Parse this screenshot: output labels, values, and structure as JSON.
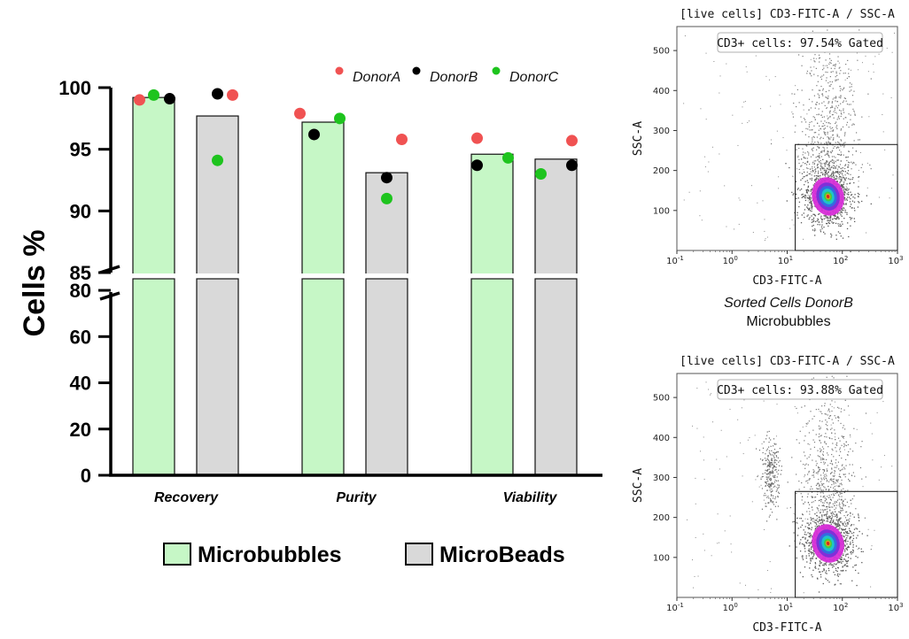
{
  "chart_data": [
    {
      "type": "bar",
      "ylabel": "Cells %",
      "categories": [
        "Recovery",
        "Purity",
        "Viability"
      ],
      "series": [
        {
          "name": "Microbubbles",
          "color": "#c6f7c6",
          "values": [
            99.2,
            97.2,
            94.6
          ]
        },
        {
          "name": "MicroBeads",
          "color": "#d9d9d9",
          "values": [
            97.7,
            93.1,
            94.2
          ]
        }
      ],
      "points": {
        "donors": [
          {
            "name": "DonorA",
            "color": "#f05252"
          },
          {
            "name": "DonorB",
            "color": "#000000"
          },
          {
            "name": "DonorC",
            "color": "#1ec41e"
          }
        ],
        "Microbubbles": {
          "DonorA": [
            99.0,
            97.9,
            95.9
          ],
          "DonorB": [
            99.1,
            96.2,
            93.7
          ],
          "DonorC": [
            99.4,
            97.5,
            94.3
          ]
        },
        "MicroBeads": {
          "DonorA": [
            99.4,
            95.8,
            95.7
          ],
          "DonorB": [
            99.5,
            92.7,
            93.7
          ],
          "DonorC": [
            94.1,
            91.0,
            93.0
          ]
        }
      },
      "y_axis_segments": [
        {
          "range": [
            0,
            85
          ],
          "ticks": [
            0,
            20,
            40,
            60,
            80
          ]
        },
        {
          "range": [
            85,
            100
          ],
          "ticks": [
            85,
            90,
            95,
            100
          ]
        }
      ],
      "legend_position": "bottom"
    },
    {
      "type": "scatter",
      "title": "[live cells] CD3-FITC-A / SSC-A",
      "xlabel": "CD3-FITC-A",
      "ylabel": "SSC-A",
      "x_scale": "log",
      "x_ticks": [
        "10-1",
        "100",
        "101",
        "102",
        "103"
      ],
      "xlim": [
        0.1,
        1000
      ],
      "y_ticks": [
        100,
        200,
        300,
        400,
        500
      ],
      "ylim": [
        0,
        560
      ],
      "gate_label": "CD3+ cells: 97.54% Gated",
      "gate_percent": 97.54,
      "side_population": false
    },
    {
      "type": "scatter",
      "title": "[live cells] CD3-FITC-A / SSC-A",
      "xlabel": "CD3-FITC-A",
      "ylabel": "SSC-A",
      "x_scale": "log",
      "x_ticks": [
        "10-1",
        "100",
        "101",
        "102",
        "103"
      ],
      "xlim": [
        0.1,
        1000
      ],
      "y_ticks": [
        100,
        200,
        300,
        400,
        500
      ],
      "ylim": [
        0,
        560
      ],
      "gate_label": "CD3+ cells: 93.88% Gated",
      "gate_percent": 93.88,
      "side_population": true
    }
  ],
  "caption": {
    "line1": "Sorted Cells DonorB",
    "line2": "Microbubbles"
  }
}
